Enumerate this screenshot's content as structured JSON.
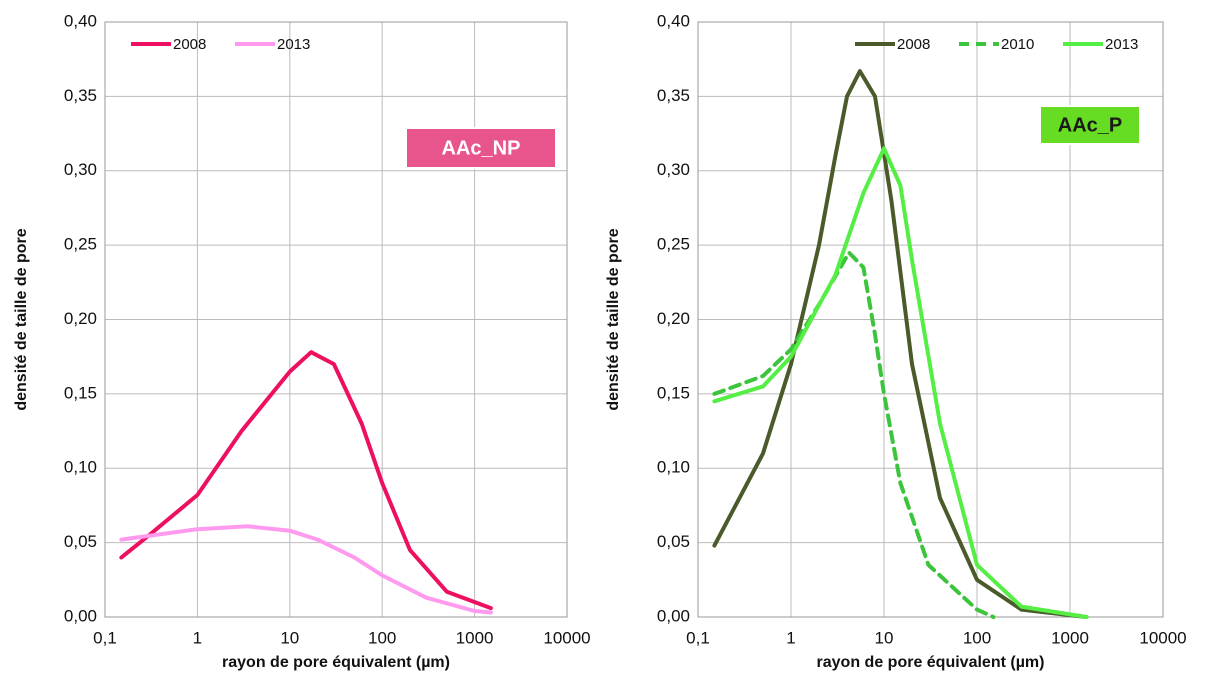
{
  "chart_data": [
    {
      "type": "line",
      "xlabel": "rayon de pore équivalent (µm)",
      "ylabel": "densité de taille de pore",
      "annotation": {
        "text": "AAc_NP",
        "color": "#e8558c",
        "text_color": "#ffffff"
      },
      "xscale": "log",
      "grid": true,
      "legend": "upper left",
      "xlim": [
        0.1,
        10000
      ],
      "ylim": [
        0,
        0.4
      ],
      "xticks": [
        {
          "value": 0.1,
          "label": "0,1"
        },
        1,
        10,
        100,
        1000,
        10000
      ],
      "yticks": [
        {
          "value": 0,
          "label": "0,00"
        },
        {
          "value": 0.05,
          "label": "0,05"
        },
        {
          "value": 0.1,
          "label": "0,10"
        },
        {
          "value": 0.15,
          "label": "0,15"
        },
        {
          "value": 0.2,
          "label": "0,20"
        },
        {
          "value": 0.25,
          "label": "0,25"
        },
        {
          "value": 0.3,
          "label": "0,30"
        },
        {
          "value": 0.35,
          "label": "0,35"
        },
        {
          "value": 0.4,
          "label": "0,40"
        }
      ],
      "series": [
        {
          "name": "2008",
          "color": "#ee1060",
          "dash": false,
          "x": [
            0.15,
            0.3,
            1,
            3,
            10,
            17,
            30,
            60,
            100,
            200,
            500,
            1500
          ],
          "values": [
            0.04,
            0.055,
            0.082,
            0.125,
            0.165,
            0.178,
            0.17,
            0.13,
            0.09,
            0.045,
            0.017,
            0.006
          ]
        },
        {
          "name": "2013",
          "color": "#ff9aee",
          "dash": false,
          "x": [
            0.15,
            1,
            3.5,
            10,
            20,
            50,
            100,
            300,
            1000,
            1500
          ],
          "values": [
            0.052,
            0.059,
            0.061,
            0.058,
            0.052,
            0.04,
            0.028,
            0.013,
            0.004,
            0.003
          ]
        }
      ]
    },
    {
      "type": "line",
      "xlabel": "rayon de pore équivalent (µm)",
      "ylabel": "densité de taille de pore",
      "annotation": {
        "text": "AAc_P",
        "color": "#66dd22",
        "text_color": "#1a1a1a"
      },
      "xscale": "log",
      "grid": true,
      "legend": "upper right",
      "xlim": [
        0.1,
        10000
      ],
      "ylim": [
        0,
        0.4
      ],
      "xticks": [
        {
          "value": 0.1,
          "label": "0,1"
        },
        1,
        10,
        100,
        1000,
        10000
      ],
      "yticks": [
        {
          "value": 0,
          "label": "0,00"
        },
        {
          "value": 0.05,
          "label": "0,05"
        },
        {
          "value": 0.1,
          "label": "0,10"
        },
        {
          "value": 0.15,
          "label": "0,15"
        },
        {
          "value": 0.2,
          "label": "0,20"
        },
        {
          "value": 0.25,
          "label": "0,25"
        },
        {
          "value": 0.3,
          "label": "0,30"
        },
        {
          "value": 0.35,
          "label": "0,35"
        },
        {
          "value": 0.4,
          "label": "0,40"
        }
      ],
      "series": [
        {
          "name": "2008",
          "color": "#4b5a2a",
          "dash": false,
          "x": [
            0.15,
            0.5,
            1,
            2,
            3,
            4,
            5.5,
            8,
            12,
            20,
            40,
            100,
            300,
            1500
          ],
          "values": [
            0.048,
            0.11,
            0.17,
            0.25,
            0.31,
            0.35,
            0.367,
            0.35,
            0.28,
            0.17,
            0.08,
            0.025,
            0.005,
            0
          ]
        },
        {
          "name": "2010",
          "color": "#3cc43c",
          "dash": true,
          "x": [
            0.15,
            0.5,
            1,
            2,
            4.2,
            6,
            8,
            10,
            15,
            30,
            100,
            150
          ],
          "values": [
            0.15,
            0.162,
            0.18,
            0.21,
            0.245,
            0.235,
            0.19,
            0.15,
            0.09,
            0.035,
            0.005,
            0
          ]
        },
        {
          "name": "2013",
          "color": "#55ee44",
          "dash": false,
          "x": [
            0.15,
            0.5,
            1,
            3,
            6,
            10,
            15,
            20,
            40,
            100,
            300,
            1500
          ],
          "values": [
            0.145,
            0.155,
            0.175,
            0.23,
            0.285,
            0.315,
            0.29,
            0.24,
            0.13,
            0.035,
            0.007,
            0
          ]
        }
      ]
    }
  ]
}
